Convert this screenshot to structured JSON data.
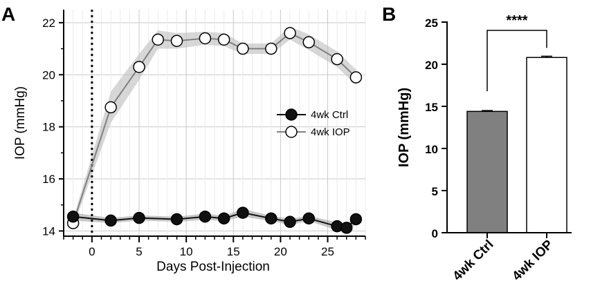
{
  "chart_data": [
    {
      "panel": "A",
      "type": "line",
      "title": "",
      "xlabel": "Days Post-Injection",
      "ylabel": "IOP (mmHg)",
      "xlim": [
        -3,
        29
      ],
      "ylim": [
        13.8,
        22.5
      ],
      "xticks": [
        0,
        5,
        10,
        15,
        20,
        25
      ],
      "yticks": [
        14,
        16,
        18,
        20,
        22
      ],
      "grid": true,
      "injection_day": 0,
      "legend_position": "center-right",
      "series": [
        {
          "name": "4wk Ctrl",
          "marker": "filled-circle",
          "color": "#111111",
          "x": [
            -2,
            2,
            5,
            9,
            12,
            14,
            16,
            19,
            21,
            23,
            26,
            27,
            28
          ],
          "y": [
            14.55,
            14.4,
            14.5,
            14.45,
            14.55,
            14.48,
            14.7,
            14.48,
            14.35,
            14.48,
            14.18,
            14.12,
            14.45
          ],
          "sem": [
            0.15,
            0.1,
            0.1,
            0.1,
            0.12,
            0.1,
            0.15,
            0.1,
            0.12,
            0.1,
            0.15,
            0.12,
            0.2
          ]
        },
        {
          "name": "4wk IOP",
          "marker": "open-circle",
          "color": "#808080",
          "x": [
            -2,
            2,
            5,
            7,
            9,
            12,
            14,
            16,
            19,
            21,
            23,
            26,
            28
          ],
          "y": [
            14.3,
            18.75,
            20.3,
            21.35,
            21.3,
            21.4,
            21.35,
            21.0,
            21.0,
            21.6,
            21.25,
            20.6,
            19.9
          ],
          "sem": [
            0.15,
            0.6,
            0.5,
            0.35,
            0.3,
            0.25,
            0.25,
            0.2,
            0.2,
            0.25,
            0.3,
            0.3,
            0.3
          ]
        }
      ]
    },
    {
      "panel": "B",
      "type": "bar",
      "title": "",
      "xlabel": "",
      "ylabel": "IOP (mmHg)",
      "ylim": [
        0,
        25
      ],
      "yticks": [
        0,
        5,
        10,
        15,
        20,
        25
      ],
      "categories": [
        "4wk Ctrl",
        "4wk IOP"
      ],
      "values": [
        14.4,
        20.8
      ],
      "errors": [
        0.1,
        0.15
      ],
      "fills": [
        "#808080",
        "#ffffff"
      ],
      "significance": "****"
    }
  ]
}
